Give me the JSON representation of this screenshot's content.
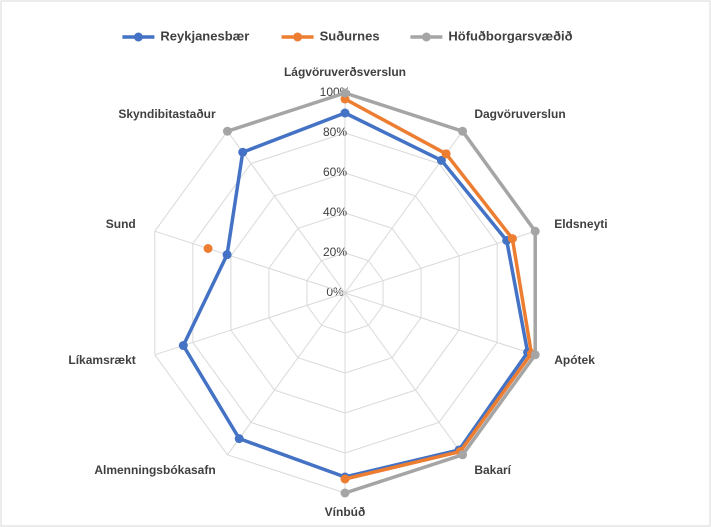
{
  "chart_data": {
    "type": "radar",
    "categories": [
      "Lágvöruverðsverslun",
      "Dagvöruverslun",
      "Eldsneyti",
      "Apótek",
      "Bakarí",
      "Vínbúð",
      "Almenningsbókasafn",
      "Líkamsrækt",
      "Sund",
      "Skyndibitastaður"
    ],
    "series": [
      {
        "name": "Reykjanesbær",
        "color": "#4472c4",
        "values": [
          90,
          82,
          85,
          96,
          97,
          92,
          90,
          85,
          62,
          87
        ]
      },
      {
        "name": "Suðurnes",
        "color": "#ed7d31",
        "values": [
          97,
          86,
          88,
          98,
          98,
          93,
          null,
          null,
          72,
          null
        ]
      },
      {
        "name": "Höfuðborgarsvæðið",
        "color": "#a5a5a5",
        "values": [
          100,
          100,
          100,
          100,
          100,
          100,
          null,
          null,
          null,
          100
        ]
      }
    ],
    "ylim": [
      0,
      100
    ],
    "yticks": [
      {
        "value": 0,
        "label": "0%"
      },
      {
        "value": 20,
        "label": "20%"
      },
      {
        "value": 40,
        "label": "40%"
      },
      {
        "value": 60,
        "label": "60%"
      },
      {
        "value": 80,
        "label": "80%"
      },
      {
        "value": 100,
        "label": "100%"
      }
    ],
    "grid": true,
    "legend": "top"
  }
}
